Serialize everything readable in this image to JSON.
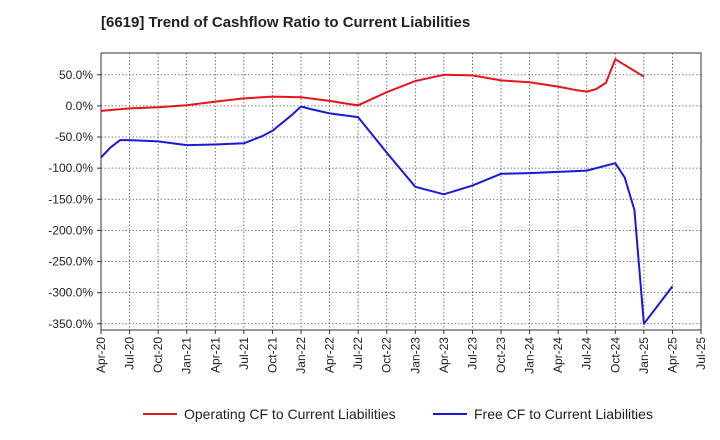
{
  "chart_data": {
    "type": "line",
    "title": "[6619]  Trend of Cashflow Ratio to Current Liabilities",
    "xlabel": "",
    "ylabel": "",
    "x_ticks": [
      "Apr-20",
      "Jul-20",
      "Oct-20",
      "Jan-21",
      "Apr-21",
      "Jul-21",
      "Oct-21",
      "Jan-22",
      "Apr-22",
      "Jul-22",
      "Oct-22",
      "Jan-23",
      "Apr-23",
      "Jul-23",
      "Oct-23",
      "Jan-24",
      "Apr-24",
      "Jul-24",
      "Oct-24",
      "Jan-25",
      "Apr-25",
      "Jul-25"
    ],
    "y_ticks": [
      "50.0%",
      "0.0%",
      "-50.0%",
      "-100.0%",
      "-150.0%",
      "-200.0%",
      "-250.0%",
      "-300.0%",
      "-350.0%"
    ],
    "y_tick_values": [
      50,
      0,
      -50,
      -100,
      -150,
      -200,
      -250,
      -300,
      -350
    ],
    "ylim": [
      -360,
      85
    ],
    "xlim": [
      0,
      21
    ],
    "grid": true,
    "legend_position": "bottom",
    "series": [
      {
        "name": "Operating CF to Current Liabilities",
        "color": "#e8141c",
        "points": [
          [
            0,
            -8
          ],
          [
            1,
            -4
          ],
          [
            2,
            -2
          ],
          [
            3,
            1
          ],
          [
            4,
            7
          ],
          [
            5,
            12
          ],
          [
            6,
            15
          ],
          [
            7,
            14
          ],
          [
            8,
            8
          ],
          [
            8.67,
            3
          ],
          [
            9,
            1
          ],
          [
            10,
            22
          ],
          [
            11,
            40
          ],
          [
            12,
            50
          ],
          [
            13,
            49
          ],
          [
            14,
            41
          ],
          [
            15,
            38
          ],
          [
            16,
            31
          ],
          [
            16.67,
            25
          ],
          [
            17,
            23
          ],
          [
            17.33,
            27
          ],
          [
            17.67,
            37
          ],
          [
            18,
            75
          ],
          [
            19,
            47
          ]
        ]
      },
      {
        "name": "Free CF to Current Liabilities",
        "color": "#1a1ad6",
        "points": [
          [
            0,
            -83
          ],
          [
            0.33,
            -67
          ],
          [
            0.67,
            -55
          ],
          [
            1,
            -55
          ],
          [
            2,
            -57
          ],
          [
            3,
            -63
          ],
          [
            4,
            -62
          ],
          [
            5,
            -60
          ],
          [
            5.67,
            -48
          ],
          [
            6,
            -40
          ],
          [
            6.67,
            -15
          ],
          [
            7,
            -1
          ],
          [
            7.33,
            -5
          ],
          [
            8,
            -12
          ],
          [
            9,
            -18
          ],
          [
            10,
            -75
          ],
          [
            11,
            -130
          ],
          [
            12,
            -142
          ],
          [
            13,
            -128
          ],
          [
            14,
            -109
          ],
          [
            15,
            -108
          ],
          [
            16,
            -106
          ],
          [
            17,
            -104
          ],
          [
            18,
            -92
          ],
          [
            18.33,
            -115
          ],
          [
            18.67,
            -167
          ],
          [
            19,
            -350
          ],
          [
            20,
            -290
          ]
        ]
      }
    ]
  }
}
